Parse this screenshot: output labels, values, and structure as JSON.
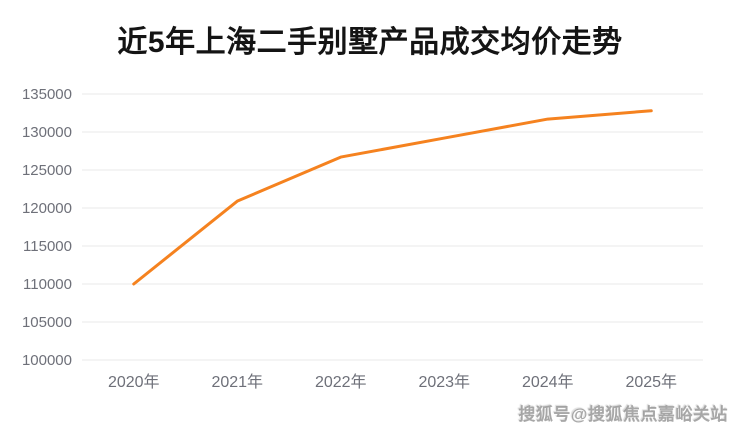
{
  "title": "近5年上海二手别墅产品成交均价走势",
  "watermark": "搜狐号@搜狐焦点嘉峪关站",
  "colors": {
    "line": "#F5821F",
    "grid": "#E9E9E9",
    "axis_label": "#6E7079",
    "title": "#141414",
    "background": "#FFFFFF"
  },
  "chart_data": {
    "type": "line",
    "title": "近5年上海二手别墅产品成交均价走势",
    "categories": [
      "2020年",
      "2021年",
      "2022年",
      "2023年",
      "2024年",
      "2025年"
    ],
    "values": [
      110000,
      120900,
      126700,
      129200,
      131700,
      132800
    ],
    "series_name": "成交均价",
    "xlabel": "",
    "ylabel": "",
    "ylim": [
      100000,
      135000
    ],
    "y_ticks": [
      100000,
      105000,
      110000,
      115000,
      120000,
      125000,
      130000,
      135000
    ],
    "grid": true,
    "legend": false,
    "line_width": 3
  }
}
